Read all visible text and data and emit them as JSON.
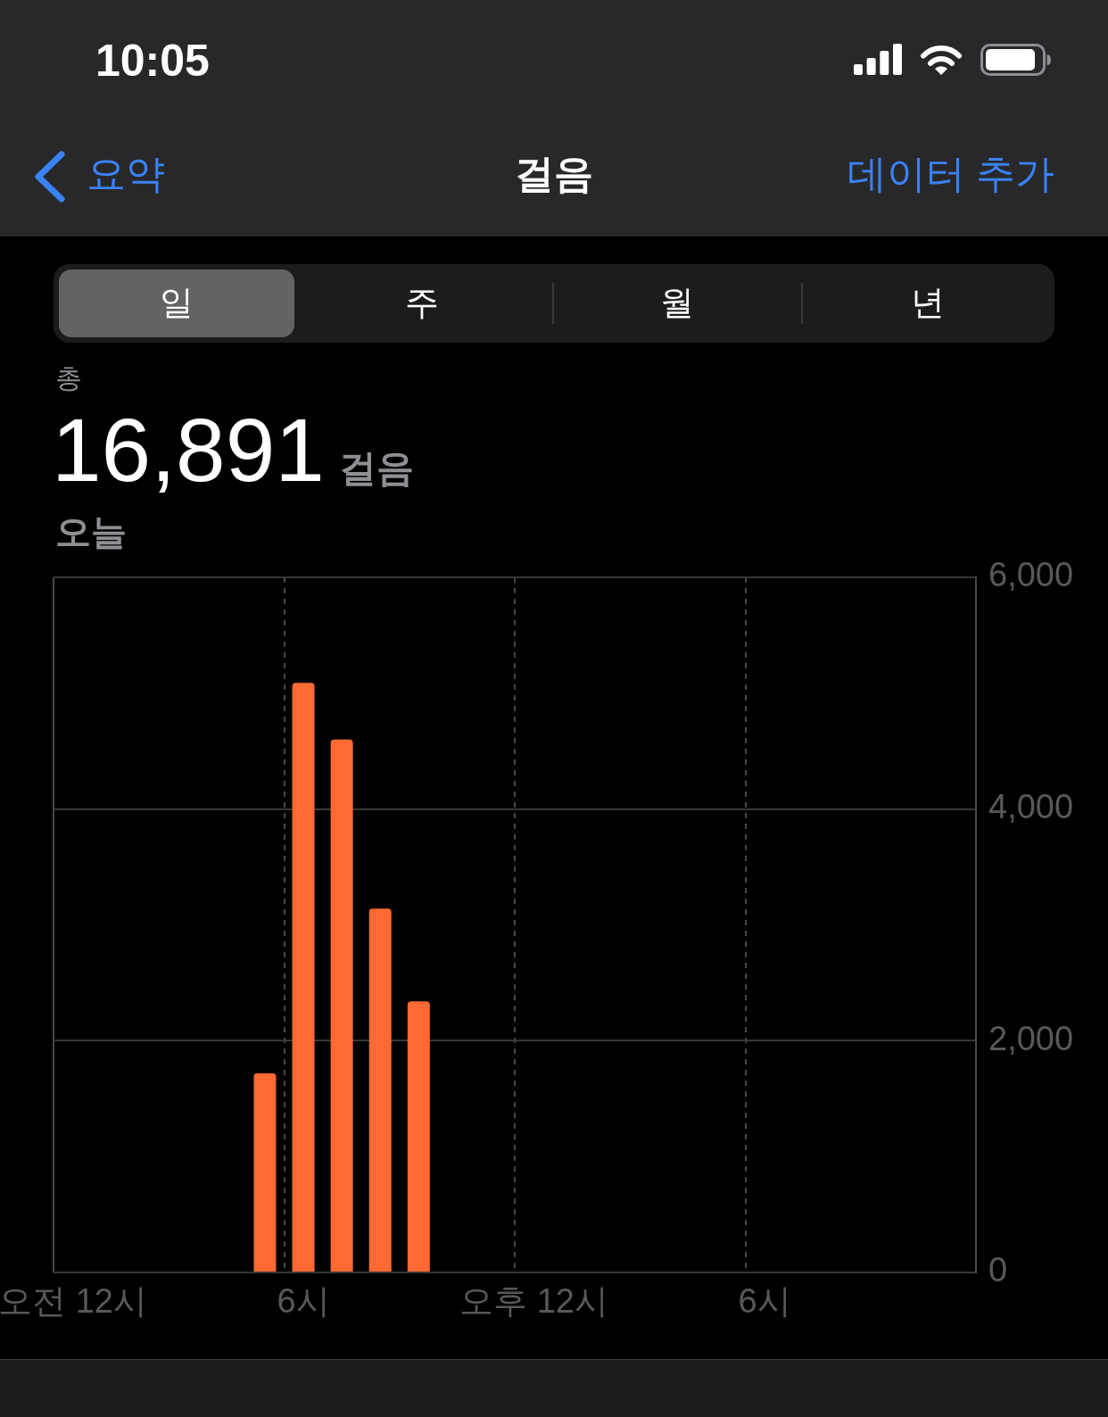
{
  "chart_data": {
    "type": "bar",
    "title": "걸음",
    "annotations": [
      "10:05",
      "요약",
      "데이터 추가",
      "일",
      "주",
      "월",
      "년",
      "총",
      "16,891",
      "걸음",
      "오늘"
    ],
    "categories": [
      "오전 12시",
      null,
      null,
      null,
      null,
      null,
      "6시",
      null,
      null,
      null,
      null,
      null,
      "오후 12시",
      null,
      null,
      null,
      null,
      null,
      "6시",
      null,
      null,
      null,
      null,
      null
    ],
    "values": [
      null,
      null,
      null,
      null,
      null,
      1720,
      5090,
      4600,
      3140,
      2340,
      null,
      null,
      null,
      null,
      null,
      null,
      null,
      null,
      null,
      null,
      null,
      null,
      null,
      null
    ],
    "color": "#ff6933",
    "ylim": [
      0,
      6000
    ],
    "yticks": [
      0,
      {
        "value": 2000,
        "label": "2,000"
      },
      {
        "value": 4000,
        "label": "4,000"
      },
      {
        "value": 6000,
        "label": "6,000"
      }
    ],
    "grid": true,
    "legend": false
  }
}
